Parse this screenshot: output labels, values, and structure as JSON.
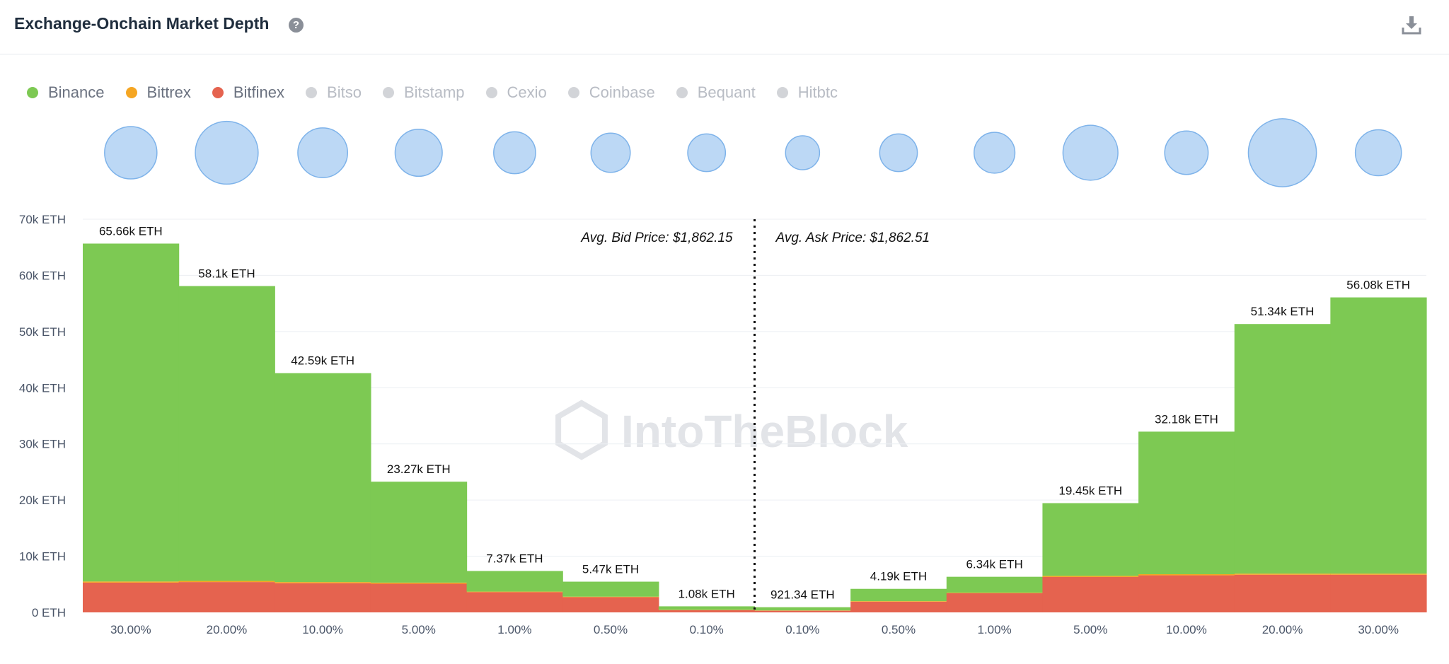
{
  "header": {
    "title": "Exchange-Onchain Market Depth",
    "help_icon": "question-circle-icon",
    "download_icon": "download-icon"
  },
  "legend": [
    {
      "label": "Binance",
      "color": "#7dc953",
      "active": true
    },
    {
      "label": "Bittrex",
      "color": "#f5a623",
      "active": true
    },
    {
      "label": "Bitfinex",
      "color": "#e5634f",
      "active": true
    },
    {
      "label": "Bitso",
      "color": "#d2d4d8",
      "active": false
    },
    {
      "label": "Bitstamp",
      "color": "#d2d4d8",
      "active": false
    },
    {
      "label": "Cexio",
      "color": "#d2d4d8",
      "active": false
    },
    {
      "label": "Coinbase",
      "color": "#d2d4d8",
      "active": false
    },
    {
      "label": "Bequant",
      "color": "#d2d4d8",
      "active": false
    },
    {
      "label": "Hitbtc",
      "color": "#d2d4d8",
      "active": false
    }
  ],
  "colors": {
    "inactive_text": "#b8bcc4",
    "active_text": "#6b7280",
    "bubble_fill": "#bcd8f5",
    "bubble_stroke": "#7eb3ea"
  },
  "watermark": "IntoTheBlock",
  "chart_data": {
    "type": "bar",
    "categories": [
      "30.00%",
      "20.00%",
      "10.00%",
      "5.00%",
      "1.00%",
      "0.50%",
      "0.10%",
      "0.10%",
      "0.50%",
      "1.00%",
      "5.00%",
      "10.00%",
      "20.00%",
      "30.00%"
    ],
    "series": [
      {
        "name": "Bitfinex",
        "color": "#e5634f",
        "values": [
          5.3,
          5.4,
          5.2,
          5.1,
          3.6,
          2.7,
          0.4,
          0.3,
          1.9,
          3.4,
          6.3,
          6.6,
          6.7,
          6.7
        ]
      },
      {
        "name": "Bittrex",
        "color": "#f5a623",
        "values": [
          0.2,
          0.2,
          0.2,
          0.2,
          0.1,
          0.1,
          0.05,
          0.05,
          0.1,
          0.1,
          0.2,
          0.2,
          0.2,
          0.2
        ]
      },
      {
        "name": "Binance",
        "color": "#7dc953",
        "values": [
          60.16,
          52.5,
          37.19,
          17.97,
          3.67,
          2.67,
          0.63,
          0.57,
          2.19,
          2.84,
          12.95,
          25.38,
          44.44,
          49.18
        ]
      }
    ],
    "totals": [
      65.66,
      58.1,
      42.59,
      23.27,
      7.37,
      5.47,
      1.08,
      0.92134,
      4.19,
      6.34,
      19.45,
      32.18,
      51.34,
      56.08
    ],
    "total_labels": [
      "65.66k ETH",
      "58.1k ETH",
      "42.59k ETH",
      "23.27k ETH",
      "7.37k ETH",
      "5.47k ETH",
      "1.08k ETH",
      "921.34 ETH",
      "4.19k ETH",
      "6.34k ETH",
      "19.45k ETH",
      "32.18k ETH",
      "51.34k ETH",
      "56.08k ETH"
    ],
    "bubble_sizes": [
      1.0,
      1.2,
      0.95,
      0.9,
      0.8,
      0.75,
      0.72,
      0.65,
      0.72,
      0.78,
      1.05,
      0.83,
      1.3,
      0.88
    ],
    "y_unit": "thousands ETH",
    "ylim": [
      0,
      70
    ],
    "yticks": [
      0,
      10,
      20,
      30,
      40,
      50,
      60,
      70
    ],
    "ytick_labels": [
      "0 ETH",
      "10k ETH",
      "20k ETH",
      "30k ETH",
      "40k ETH",
      "50k ETH",
      "60k ETH",
      "70k ETH"
    ],
    "avg_bid_label": "Avg. Bid Price: $1,862.15",
    "avg_ask_label": "Avg. Ask Price: $1,862.51",
    "grid": true
  }
}
